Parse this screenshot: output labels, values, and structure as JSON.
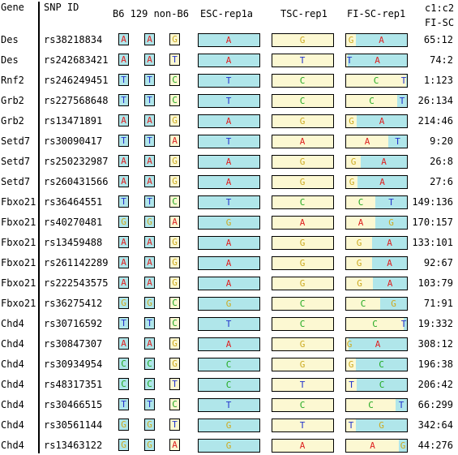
{
  "headers": {
    "gene": "Gene",
    "snp": "SNP ID",
    "strains": "B6 129 non-B6",
    "esc": "ESC-rep1a",
    "tsc": "TSC-rep1",
    "fisc": "FI-SC-rep1",
    "ratio_line1": "c1:c2",
    "ratio_line2": "FI-SC"
  },
  "colors": {
    "A": "#dd2222",
    "T": "#2233cc",
    "C": "#22aa22",
    "G": "#ccaa22",
    "cyan": "#b0e6ea",
    "cream": "#fcf8d2"
  },
  "rows": [
    {
      "gene": "Des",
      "snp": "rs38218834",
      "b6": "A",
      "s129": "A",
      "non": "G",
      "esc": "A",
      "tsc": "G",
      "fi_left": "A",
      "fi_right": "G",
      "c1": 65,
      "c2": 12,
      "ratio": "65:12"
    },
    {
      "gene": "Des",
      "snp": "rs242683421",
      "b6": "A",
      "s129": "A",
      "non": "T",
      "esc": "A",
      "tsc": "T",
      "fi_left": "A",
      "fi_right": "T",
      "c1": 74,
      "c2": 2,
      "ratio": "74:2"
    },
    {
      "gene": "Rnf2",
      "snp": "rs246249451",
      "b6": "T",
      "s129": "T",
      "non": "C",
      "esc": "T",
      "tsc": "C",
      "fi_left": "T",
      "fi_right": "C",
      "c1": 1,
      "c2": 123,
      "ratio": "1:123"
    },
    {
      "gene": "Grb2",
      "snp": "rs227568648",
      "b6": "T",
      "s129": "T",
      "non": "C",
      "esc": "T",
      "tsc": "C",
      "fi_left": "T",
      "fi_right": "C",
      "c1": 26,
      "c2": 134,
      "ratio": "26:134"
    },
    {
      "gene": "Grb2",
      "snp": "rs13471891",
      "b6": "A",
      "s129": "A",
      "non": "G",
      "esc": "A",
      "tsc": "G",
      "fi_left": "A",
      "fi_right": "G",
      "c1": 214,
      "c2": 46,
      "ratio": "214:46"
    },
    {
      "gene": "Setd7",
      "snp": "rs30090417",
      "b6": "T",
      "s129": "T",
      "non": "A",
      "esc": "T",
      "tsc": "A",
      "fi_left": "T",
      "fi_right": "A",
      "c1": 9,
      "c2": 20,
      "ratio": "9:20"
    },
    {
      "gene": "Setd7",
      "snp": "rs250232987",
      "b6": "A",
      "s129": "A",
      "non": "G",
      "esc": "A",
      "tsc": "G",
      "fi_left": "A",
      "fi_right": "G",
      "c1": 26,
      "c2": 8,
      "ratio": "26:8"
    },
    {
      "gene": "Setd7",
      "snp": "rs260431566",
      "b6": "A",
      "s129": "A",
      "non": "G",
      "esc": "A",
      "tsc": "G",
      "fi_left": "A",
      "fi_right": "G",
      "c1": 27,
      "c2": 6,
      "ratio": "27:6"
    },
    {
      "gene": "Fbxo21",
      "snp": "rs36464551",
      "b6": "T",
      "s129": "T",
      "non": "C",
      "esc": "T",
      "tsc": "C",
      "fi_left": "T",
      "fi_right": "C",
      "c1": 149,
      "c2": 136,
      "ratio": "149:136"
    },
    {
      "gene": "Fbxo21",
      "snp": "rs40270481",
      "b6": "G",
      "s129": "G",
      "non": "A",
      "esc": "G",
      "tsc": "A",
      "fi_left": "G",
      "fi_right": "A",
      "c1": 170,
      "c2": 157,
      "ratio": "170:157"
    },
    {
      "gene": "Fbxo21",
      "snp": "rs13459488",
      "b6": "A",
      "s129": "A",
      "non": "G",
      "esc": "A",
      "tsc": "G",
      "fi_left": "A",
      "fi_right": "G",
      "c1": 133,
      "c2": 101,
      "ratio": "133:101"
    },
    {
      "gene": "Fbxo21",
      "snp": "rs261142289",
      "b6": "A",
      "s129": "A",
      "non": "G",
      "esc": "A",
      "tsc": "G",
      "fi_left": "A",
      "fi_right": "G",
      "c1": 92,
      "c2": 67,
      "ratio": "92:67"
    },
    {
      "gene": "Fbxo21",
      "snp": "rs222543575",
      "b6": "A",
      "s129": "A",
      "non": "G",
      "esc": "A",
      "tsc": "G",
      "fi_left": "A",
      "fi_right": "G",
      "c1": 103,
      "c2": 79,
      "ratio": "103:79"
    },
    {
      "gene": "Fbxo21",
      "snp": "rs36275412",
      "b6": "G",
      "s129": "G",
      "non": "C",
      "esc": "G",
      "tsc": "C",
      "fi_left": "G",
      "fi_right": "C",
      "c1": 71,
      "c2": 91,
      "ratio": "71:91"
    },
    {
      "gene": "Chd4",
      "snp": "rs30716592",
      "b6": "T",
      "s129": "T",
      "non": "C",
      "esc": "T",
      "tsc": "C",
      "fi_left": "T",
      "fi_right": "C",
      "c1": 19,
      "c2": 332,
      "ratio": "19:332"
    },
    {
      "gene": "Chd4",
      "snp": "rs30847307",
      "b6": "A",
      "s129": "A",
      "non": "G",
      "esc": "A",
      "tsc": "G",
      "fi_left": "A",
      "fi_right": "G",
      "c1": 308,
      "c2": 12,
      "ratio": "308:12"
    },
    {
      "gene": "Chd4",
      "snp": "rs30934954",
      "b6": "C",
      "s129": "C",
      "non": "G",
      "esc": "C",
      "tsc": "G",
      "fi_left": "C",
      "fi_right": "G",
      "c1": 196,
      "c2": 38,
      "ratio": "196:38"
    },
    {
      "gene": "Chd4",
      "snp": "rs48317351",
      "b6": "C",
      "s129": "C",
      "non": "T",
      "esc": "C",
      "tsc": "T",
      "fi_left": "C",
      "fi_right": "T",
      "c1": 206,
      "c2": 42,
      "ratio": "206:42"
    },
    {
      "gene": "Chd4",
      "snp": "rs30466515",
      "b6": "T",
      "s129": "T",
      "non": "C",
      "esc": "T",
      "tsc": "C",
      "fi_left": "T",
      "fi_right": "C",
      "c1": 66,
      "c2": 299,
      "ratio": "66:299"
    },
    {
      "gene": "Chd4",
      "snp": "rs30561144",
      "b6": "G",
      "s129": "G",
      "non": "T",
      "esc": "G",
      "tsc": "T",
      "fi_left": "G",
      "fi_right": "T",
      "c1": 342,
      "c2": 64,
      "ratio": "342:64"
    },
    {
      "gene": "Chd4",
      "snp": "rs13463122",
      "b6": "G",
      "s129": "G",
      "non": "A",
      "esc": "G",
      "tsc": "A",
      "fi_left": "G",
      "fi_right": "A",
      "c1": 44,
      "c2": 276,
      "ratio": "44:276"
    }
  ]
}
